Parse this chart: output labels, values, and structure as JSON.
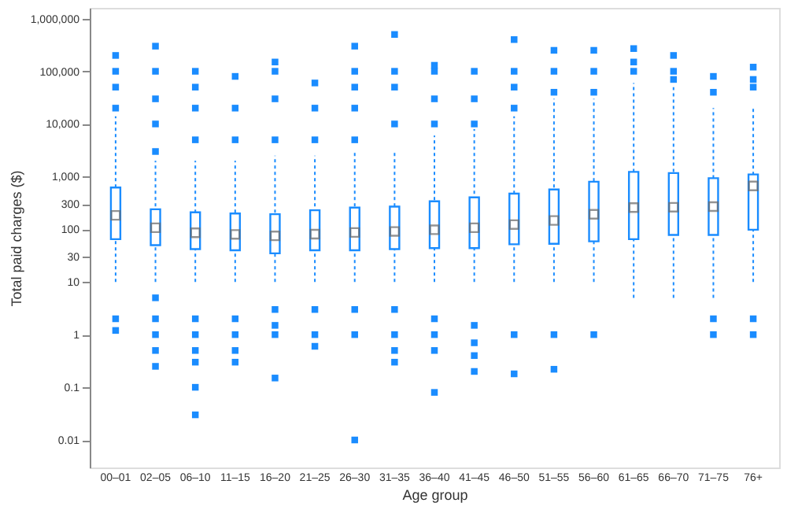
{
  "chart_data": {
    "type": "box",
    "xlabel": "Age group",
    "ylabel": "Total paid charges ($)",
    "categories": [
      "00–01",
      "02–05",
      "06–10",
      "11–15",
      "16–20",
      "21–25",
      "26–30",
      "31–35",
      "36–40",
      "41–45",
      "46–50",
      "51–55",
      "56–60",
      "61–65",
      "66–70",
      "71–75",
      "76+"
    ],
    "color": "#1a8cff",
    "log": true,
    "grid": false,
    "marker": "square",
    "ylim": [
      0.003,
      1600000
    ],
    "yticks": [
      0.01,
      0.1,
      1,
      10,
      30,
      100,
      300,
      {
        "value": 1000,
        "label": "1,000"
      },
      {
        "value": 10000,
        "label": "10,000"
      },
      {
        "value": 100000,
        "label": "100,000"
      },
      {
        "value": 1000000,
        "label": "1,000,000"
      }
    ],
    "boxes": [
      {
        "low": 10,
        "q1": 65,
        "median": 184,
        "q3": 620,
        "high": 14000,
        "outliers": [
          20000,
          50000,
          100000,
          200000,
          2,
          1.2
        ]
      },
      {
        "low": 10,
        "q1": 50,
        "median": 107,
        "q3": 240,
        "high": 2000,
        "outliers": [
          3000,
          10000,
          30000,
          100000,
          300000,
          5,
          2,
          1,
          0.5,
          0.25
        ]
      },
      {
        "low": 10,
        "q1": 42,
        "median": 86,
        "q3": 210,
        "high": 2000,
        "outliers": [
          5000,
          20000,
          50000,
          100000,
          2,
          1,
          0.5,
          0.3,
          0.1,
          0.03
        ]
      },
      {
        "low": 10,
        "q1": 40,
        "median": 80,
        "q3": 200,
        "high": 2000,
        "outliers": [
          5000,
          20000,
          80000,
          2,
          1,
          0.5,
          0.3
        ]
      },
      {
        "low": 10,
        "q1": 35,
        "median": 75,
        "q3": 194,
        "high": 2500,
        "outliers": [
          5000,
          30000,
          100000,
          150000,
          3,
          1.5,
          1,
          0.15
        ]
      },
      {
        "low": 10,
        "q1": 40,
        "median": 81,
        "q3": 230,
        "high": 2500,
        "outliers": [
          5000,
          20000,
          60000,
          3,
          1,
          0.6
        ]
      },
      {
        "low": 10,
        "q1": 40,
        "median": 87,
        "q3": 258,
        "high": 3000,
        "outliers": [
          5000,
          20000,
          50000,
          100000,
          300000,
          3,
          1,
          0.01
        ]
      },
      {
        "low": 10,
        "q1": 42,
        "median": 91,
        "q3": 270,
        "high": 3000,
        "outliers": [
          10000,
          50000,
          100000,
          500000,
          3,
          1,
          0.5,
          0.3
        ]
      },
      {
        "low": 10,
        "q1": 44,
        "median": 98,
        "q3": 340,
        "high": 6000,
        "outliers": [
          10000,
          30000,
          100000,
          130000,
          2,
          1,
          0.5,
          0.08
        ]
      },
      {
        "low": 10,
        "q1": 44,
        "median": 107,
        "q3": 405,
        "high": 8000,
        "outliers": [
          10000,
          30000,
          100000,
          1.5,
          0.7,
          0.4,
          0.2
        ]
      },
      {
        "low": 10,
        "q1": 52,
        "median": 123,
        "q3": 475,
        "high": 14000,
        "outliers": [
          20000,
          50000,
          100000,
          400000,
          1,
          0.18
        ]
      },
      {
        "low": 10,
        "q1": 53,
        "median": 147,
        "q3": 570,
        "high": 30000,
        "outliers": [
          40000,
          100000,
          250000,
          1,
          0.22
        ]
      },
      {
        "low": 10,
        "q1": 59,
        "median": 193,
        "q3": 800,
        "high": 30000,
        "outliers": [
          40000,
          100000,
          250000,
          1
        ]
      },
      {
        "low": 5,
        "q1": 65,
        "median": 258,
        "q3": 1230,
        "high": 60000,
        "outliers": [
          100000,
          150000,
          270000
        ]
      },
      {
        "low": 5,
        "q1": 78,
        "median": 262,
        "q3": 1170,
        "high": 50000,
        "outliers": [
          70000,
          100000,
          200000
        ]
      },
      {
        "low": 5,
        "q1": 78,
        "median": 270,
        "q3": 935,
        "high": 20000,
        "outliers": [
          40000,
          80000,
          2,
          1
        ]
      },
      {
        "low": 10,
        "q1": 98,
        "median": 665,
        "q3": 1100,
        "high": 20000,
        "outliers": [
          50000,
          70000,
          120000,
          2,
          1
        ]
      }
    ]
  }
}
